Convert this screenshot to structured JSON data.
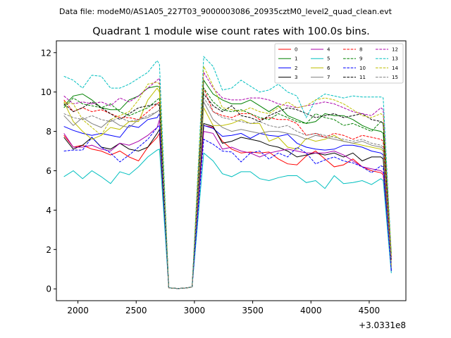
{
  "chart_data": {
    "type": "line",
    "suptitle": "Data file: modeM0/AS1A05_227T03_9000003086_20935cztM0_level2_quad_clean.evt",
    "title": "Quadrant 1 module wise count rates with 100.0s bins.",
    "xlabel": "",
    "ylabel": "",
    "x_offset_label": "+3.0331e8",
    "xlim": [
      1815,
      4815
    ],
    "ylim": [
      -0.6,
      12.6
    ],
    "xticks": [
      2000,
      2500,
      3000,
      3500,
      4000,
      4500
    ],
    "xtick_labels": [
      "2000",
      "2500",
      "3000",
      "3500",
      "4000",
      "4500"
    ],
    "yticks": [
      0,
      2,
      4,
      6,
      8,
      10,
      12
    ],
    "ytick_labels": [
      "0",
      "2",
      "4",
      "6",
      "8",
      "10",
      "12"
    ],
    "legend_position": "top-right",
    "legend_columns": 4,
    "x": [
      1880,
      1960,
      2040,
      2120,
      2200,
      2280,
      2360,
      2440,
      2520,
      2600,
      2680,
      2700,
      2780,
      2860,
      2940,
      2980,
      3080,
      3160,
      3240,
      3320,
      3400,
      3480,
      3560,
      3640,
      3720,
      3800,
      3880,
      3960,
      4040,
      4120,
      4200,
      4280,
      4360,
      4440,
      4520,
      4600,
      4620,
      4690
    ],
    "series": [
      {
        "name": "0",
        "color": "#ff0000",
        "dash": "solid",
        "values": [
          7.8,
          7.2,
          7.3,
          7.1,
          7.0,
          6.8,
          7.0,
          6.7,
          6.5,
          7.2,
          7.7,
          7.9,
          0.05,
          0.02,
          0.05,
          0.1,
          8.3,
          8.2,
          7.5,
          7.1,
          6.9,
          6.95,
          6.9,
          6.95,
          6.6,
          6.35,
          6.3,
          6.75,
          7.0,
          6.6,
          6.2,
          6.3,
          6.6,
          6.2,
          6.0,
          5.9,
          5.8,
          1.2
        ]
      },
      {
        "name": "1",
        "color": "#008000",
        "dash": "solid",
        "values": [
          9.3,
          9.8,
          9.9,
          9.6,
          9.2,
          9.1,
          9.1,
          9.6,
          9.8,
          10.2,
          10.3,
          10.25,
          0.05,
          0.02,
          0.05,
          0.1,
          10.6,
          9.9,
          9.6,
          9.4,
          9.4,
          9.6,
          9.3,
          9.0,
          9.3,
          8.8,
          8.6,
          8.4,
          8.5,
          8.9,
          8.8,
          8.8,
          8.6,
          8.3,
          8.1,
          8.0,
          7.9,
          1.8
        ]
      },
      {
        "name": "2",
        "color": "#0000ff",
        "dash": "solid",
        "values": [
          8.25,
          8.05,
          7.9,
          7.8,
          7.9,
          7.8,
          7.7,
          8.3,
          8.2,
          8.6,
          8.7,
          8.9,
          0.05,
          0.02,
          0.05,
          0.1,
          8.3,
          8.15,
          7.75,
          7.8,
          7.9,
          7.65,
          7.9,
          7.8,
          7.75,
          7.85,
          7.4,
          7.2,
          7.1,
          7.05,
          7.1,
          7.3,
          7.3,
          7.2,
          7.0,
          6.9,
          6.8,
          1.0
        ]
      },
      {
        "name": "3",
        "color": "#000000",
        "dash": "solid",
        "values": [
          7.7,
          7.1,
          7.3,
          7.7,
          7.2,
          7.1,
          7.4,
          7.1,
          7.0,
          7.2,
          7.9,
          8.1,
          0.05,
          0.02,
          0.05,
          0.1,
          8.4,
          8.25,
          7.4,
          7.5,
          7.7,
          7.6,
          7.5,
          7.3,
          7.2,
          7.0,
          6.7,
          6.8,
          6.9,
          6.8,
          6.9,
          6.7,
          6.9,
          6.5,
          6.7,
          6.7,
          6.6,
          0.9
        ]
      },
      {
        "name": "4",
        "color": "#aa00aa",
        "dash": "solid",
        "values": [
          7.9,
          7.2,
          7.2,
          7.3,
          7.1,
          7.0,
          7.4,
          7.3,
          7.5,
          7.8,
          8.2,
          8.6,
          0.05,
          0.02,
          0.05,
          0.1,
          8.0,
          7.9,
          7.1,
          7.2,
          7.0,
          6.9,
          6.7,
          6.9,
          7.0,
          7.1,
          7.0,
          6.9,
          6.9,
          6.9,
          7.0,
          6.8,
          6.5,
          6.2,
          6.1,
          6.0,
          5.9,
          0.95
        ]
      },
      {
        "name": "5",
        "color": "#00bfbf",
        "dash": "solid",
        "values": [
          5.7,
          6.0,
          5.6,
          6.0,
          5.7,
          5.35,
          5.95,
          5.8,
          6.2,
          6.7,
          7.05,
          7.1,
          0.05,
          0.02,
          0.05,
          0.1,
          6.9,
          6.5,
          5.85,
          5.7,
          5.95,
          5.95,
          5.6,
          5.5,
          5.65,
          5.75,
          5.75,
          5.4,
          5.5,
          5.1,
          5.75,
          5.35,
          5.4,
          5.5,
          5.3,
          5.6,
          5.5,
          0.8
        ]
      },
      {
        "name": "6",
        "color": "#bfbf00",
        "dash": "solid",
        "values": [
          9.5,
          8.5,
          8.0,
          7.6,
          7.8,
          8.2,
          8.1,
          8.5,
          8.5,
          9.6,
          10.2,
          10.0,
          0.05,
          0.02,
          0.05,
          0.1,
          9.2,
          8.3,
          8.3,
          8.4,
          8.6,
          8.4,
          8.4,
          7.5,
          7.7,
          7.2,
          7.1,
          7.65,
          7.5,
          7.6,
          7.8,
          7.5,
          7.4,
          7.3,
          7.2,
          7.1,
          7.0,
          1.1
        ]
      },
      {
        "name": "7",
        "color": "#808080",
        "dash": "solid",
        "values": [
          8.8,
          8.3,
          8.7,
          8.4,
          8.2,
          8.6,
          8.3,
          8.2,
          8.6,
          8.7,
          9.0,
          9.1,
          0.05,
          0.02,
          0.05,
          0.1,
          9.5,
          8.6,
          8.2,
          8.0,
          8.1,
          8.0,
          7.9,
          8.0,
          8.0,
          7.9,
          7.8,
          7.6,
          7.8,
          7.7,
          7.6,
          7.5,
          7.4,
          7.5,
          7.3,
          7.2,
          7.1,
          1.3
        ]
      },
      {
        "name": "8",
        "color": "#ff0000",
        "dash": "dashed",
        "values": [
          9.6,
          9.0,
          9.2,
          9.0,
          9.1,
          8.9,
          8.7,
          8.7,
          8.6,
          9.0,
          9.4,
          9.5,
          0.05,
          0.02,
          0.05,
          0.1,
          10.2,
          9.0,
          8.8,
          8.7,
          8.9,
          8.9,
          8.6,
          8.7,
          8.6,
          8.6,
          8.4,
          7.8,
          7.9,
          7.7,
          7.9,
          7.8,
          7.6,
          7.8,
          7.7,
          7.6,
          7.5,
          1.4
        ]
      },
      {
        "name": "9",
        "color": "#008000",
        "dash": "dashed",
        "values": [
          9.2,
          9.7,
          9.4,
          9.3,
          9.2,
          9.4,
          9.0,
          8.8,
          9.0,
          9.2,
          9.6,
          9.7,
          0.05,
          0.02,
          0.05,
          0.1,
          10.2,
          9.5,
          9.1,
          9.0,
          9.1,
          8.9,
          8.7,
          8.6,
          8.9,
          8.7,
          8.5,
          8.4,
          8.9,
          8.7,
          8.6,
          8.3,
          8.4,
          8.2,
          8.0,
          8.5,
          8.4,
          1.6
        ]
      },
      {
        "name": "10",
        "color": "#0000ff",
        "dash": "dashed",
        "values": [
          7.0,
          7.05,
          7.05,
          7.7,
          7.2,
          6.9,
          6.45,
          6.8,
          7.2,
          7.6,
          8.2,
          8.3,
          0.05,
          0.02,
          0.05,
          0.1,
          7.6,
          7.35,
          7.0,
          6.95,
          6.45,
          6.9,
          7.0,
          6.6,
          6.9,
          6.7,
          7.2,
          6.9,
          6.35,
          6.55,
          6.7,
          6.5,
          6.4,
          6.2,
          5.9,
          6.25,
          6.2,
          0.9
        ]
      },
      {
        "name": "11",
        "color": "#000000",
        "dash": "dashed",
        "values": [
          9.4,
          9.0,
          9.2,
          9.5,
          9.2,
          8.9,
          8.6,
          8.9,
          9.2,
          9.3,
          9.4,
          9.3,
          0.05,
          0.02,
          0.05,
          0.1,
          9.9,
          9.3,
          9.0,
          9.3,
          8.8,
          8.7,
          8.5,
          8.8,
          9.0,
          9.2,
          9.1,
          8.9,
          8.7,
          8.8,
          8.9,
          8.7,
          8.8,
          8.9,
          8.6,
          8.5,
          8.4,
          1.5
        ]
      },
      {
        "name": "12",
        "color": "#aa00aa",
        "dash": "dashed",
        "values": [
          9.8,
          9.4,
          9.5,
          9.4,
          9.5,
          9.3,
          9.7,
          9.5,
          9.8,
          10.2,
          10.6,
          10.7,
          0.05,
          0.02,
          0.05,
          0.1,
          11.0,
          10.2,
          9.7,
          9.6,
          9.6,
          9.7,
          9.7,
          9.6,
          9.4,
          9.3,
          9.2,
          9.3,
          9.4,
          9.5,
          9.4,
          9.2,
          9.0,
          8.9,
          8.8,
          9.2,
          9.1,
          1.6
        ]
      },
      {
        "name": "13",
        "color": "#00bfbf",
        "dash": "dashed",
        "values": [
          10.8,
          10.6,
          10.2,
          10.85,
          10.8,
          10.2,
          10.2,
          10.4,
          10.7,
          11.0,
          11.6,
          11.4,
          0.05,
          0.02,
          0.05,
          0.1,
          11.8,
          11.3,
          10.1,
          10.2,
          10.6,
          10.3,
          10.0,
          10.1,
          10.4,
          10.0,
          9.8,
          8.7,
          9.6,
          9.9,
          9.8,
          9.7,
          9.8,
          9.75,
          9.75,
          9.75,
          9.7,
          1.8
        ]
      },
      {
        "name": "14",
        "color": "#bfbf00",
        "dash": "dashed",
        "values": [
          9.5,
          9.4,
          8.6,
          8.2,
          7.8,
          8.6,
          8.8,
          9.0,
          9.6,
          10.4,
          10.5,
          10.4,
          0.05,
          0.02,
          0.05,
          0.1,
          11.3,
          10.3,
          9.2,
          9.1,
          9.0,
          9.2,
          9.0,
          8.9,
          9.2,
          9.5,
          9.2,
          9.3,
          9.6,
          9.7,
          9.6,
          9.4,
          9.1,
          8.8,
          8.7,
          8.9,
          8.8,
          1.7
        ]
      },
      {
        "name": "15",
        "color": "#808080",
        "dash": "dashed",
        "values": [
          8.9,
          8.7,
          8.6,
          8.8,
          8.6,
          8.5,
          8.7,
          8.5,
          8.6,
          8.8,
          9.0,
          9.1,
          0.05,
          0.02,
          0.05,
          0.1,
          9.7,
          9.0,
          8.7,
          8.6,
          8.5,
          8.4,
          8.5,
          8.3,
          8.2,
          8.3,
          8.0,
          7.8,
          7.9,
          7.8,
          7.7,
          7.6,
          7.5,
          7.6,
          7.4,
          7.3,
          7.2,
          1.3
        ]
      }
    ]
  }
}
